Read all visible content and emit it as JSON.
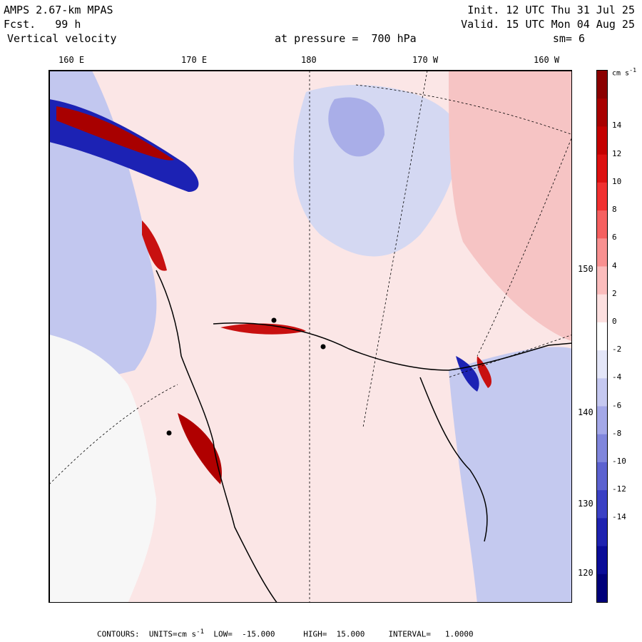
{
  "header": {
    "model": "AMPS 2.67-km MPAS",
    "forecast": "Fcst.   99 h",
    "field": "Vertical velocity",
    "level": "at pressure =  700 hPa",
    "init": "Init. 12 UTC Thu 31 Jul 25",
    "valid": "Valid. 15 UTC Mon 04 Aug 25",
    "smoothing": "sm= 6"
  },
  "longitude_labels": [
    "160 E",
    "170 E",
    "180",
    "170 W",
    "160 W"
  ],
  "latitude_labels": [
    "150 W",
    "140 W",
    "130 W",
    "120 W"
  ],
  "colorbar": {
    "unit": "cm s",
    "unit_exp": "-1",
    "labels": [
      "14",
      "12",
      "10",
      "8",
      "6",
      "4",
      "2",
      "0",
      "-2",
      "-4",
      "-6",
      "-8",
      "-10",
      "-12",
      "-14"
    ],
    "colors": [
      "#8b0000",
      "#a80000",
      "#c40000",
      "#dc1010",
      "#f03030",
      "#f56060",
      "#f89090",
      "#fbbcbc",
      "#fde0e0",
      "#ffffff",
      "#e4e6f8",
      "#c5c8f0",
      "#a4a8e8",
      "#8086dc",
      "#5c62d0",
      "#3a40c4",
      "#1e22b0",
      "#0a0c98",
      "#00007a"
    ]
  },
  "map": {
    "colors": {
      "ice_shelf": "#f7f7f7",
      "weak_positive": "#f9d6d6",
      "weak_negative": "#d7dbf3",
      "strong_positive": "#c81010",
      "strong_negative": "#1c22b4",
      "coast": "#000000"
    }
  },
  "footer": {
    "contours_label": "CONTOURS:",
    "units_label": "UNITS=cm s",
    "units_exp": "-1",
    "low": "LOW=  -15.000",
    "high": "HIGH=  15.000",
    "interval": "INTERVAL=   1.0000"
  }
}
